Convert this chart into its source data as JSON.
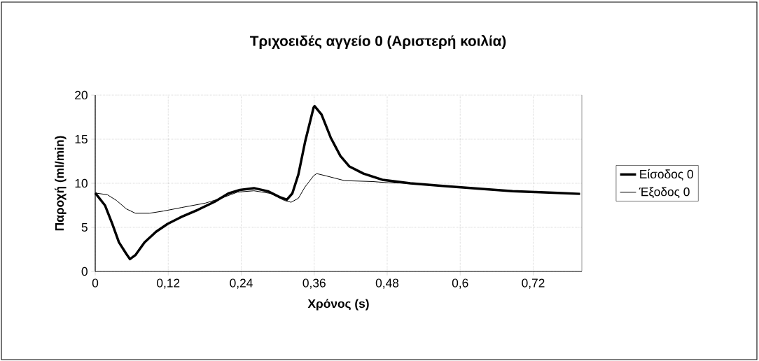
{
  "chart_data": {
    "type": "line",
    "title": "Τριχοειδές αγγείο 0 (Αριστερή κοιλία)",
    "xlabel": "Χρόνος (s)",
    "ylabel": "Παροχή (ml/min)",
    "xlim": [
      0,
      0.8
    ],
    "ylim": [
      0,
      20
    ],
    "xticks": [
      0,
      {
        "value": 0.12,
        "label": "0,12"
      },
      {
        "value": 0.24,
        "label": "0,24"
      },
      {
        "value": 0.36,
        "label": "0,36"
      },
      {
        "value": 0.48,
        "label": "0,48"
      },
      {
        "value": 0.6,
        "label": "0,6"
      },
      {
        "value": 0.72,
        "label": "0,72"
      }
    ],
    "yticks": [
      0,
      5,
      10,
      15,
      20
    ],
    "grid": true,
    "legend": "right",
    "marker": "none",
    "series": [
      {
        "name": "Είσοδος 0",
        "color": "#000000",
        "x": [
          0,
          0.016,
          0.028,
          0.039,
          0.051,
          0.057,
          0.066,
          0.081,
          0.1,
          0.119,
          0.142,
          0.169,
          0.196,
          0.219,
          0.238,
          0.261,
          0.284,
          0.303,
          0.315,
          0.324,
          0.334,
          0.345,
          0.359,
          0.3606,
          0.372,
          0.387,
          0.403,
          0.418,
          0.441,
          0.472,
          0.518,
          0.571,
          0.628,
          0.686,
          0.724,
          0.76,
          0.797
        ],
        "values": [
          8.9,
          7.5,
          5.4,
          3.3,
          2.0,
          1.4,
          1.85,
          3.3,
          4.5,
          5.4,
          6.2,
          7.0,
          7.9,
          8.85,
          9.25,
          9.45,
          9.1,
          8.45,
          8.15,
          8.85,
          11.0,
          14.7,
          18.6,
          18.76,
          17.8,
          15.2,
          13.1,
          11.9,
          11.1,
          10.4,
          10.0,
          9.7,
          9.4,
          9.1,
          9.0,
          8.9,
          8.8
        ]
      },
      {
        "name": "Έξοδος 0",
        "color": "#000000",
        "x": [
          0,
          0.02,
          0.035,
          0.051,
          0.066,
          0.089,
          0.112,
          0.142,
          0.181,
          0.207,
          0.234,
          0.261,
          0.288,
          0.311,
          0.322,
          0.334,
          0.345,
          0.359,
          0.364,
          0.379,
          0.41,
          0.456,
          0.483,
          0.518,
          0.571,
          0.628,
          0.686,
          0.724,
          0.76,
          0.797
        ],
        "values": [
          8.9,
          8.7,
          8.05,
          7.1,
          6.6,
          6.6,
          6.85,
          7.25,
          7.75,
          8.3,
          9.0,
          9.15,
          8.85,
          8.05,
          7.85,
          8.3,
          9.6,
          10.85,
          11.1,
          10.85,
          10.3,
          10.2,
          10.05,
          10.0,
          9.7,
          9.4,
          9.1,
          9.0,
          8.9,
          8.8
        ]
      }
    ]
  }
}
